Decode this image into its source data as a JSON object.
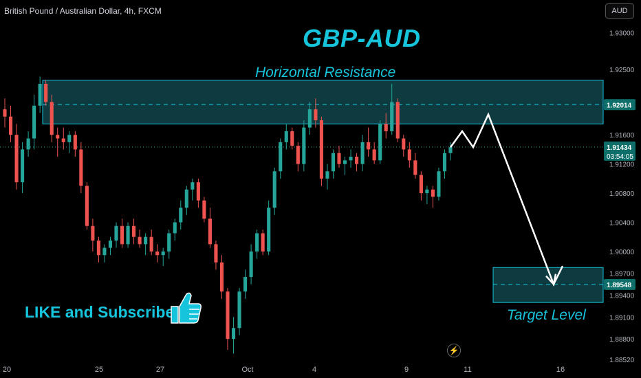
{
  "header": {
    "symbol": "British Pound / Australian Dollar, 4h, FXCM",
    "currency_button": "AUD"
  },
  "annotations": {
    "title": "GBP-AUD",
    "resistance_label": "Horizontal Resistance",
    "target_label": "Target Level",
    "like_text": "LIKE and Subscribe",
    "thumbs_icon": "thumbs-up-icon",
    "bolt_icon": "lightning-icon"
  },
  "colors": {
    "up": "#26a69a",
    "down": "#ef5350",
    "accent": "#16c4dc",
    "zone_fill": "#0e3b40",
    "price_tag": "#0e6f6a"
  },
  "price_tags": {
    "resistance": "1.92014",
    "current": "1.91434",
    "countdown": "03:54:05",
    "target": "1.89548"
  },
  "chart_data": {
    "type": "candlestick",
    "title": "GBP-AUD",
    "symbol": "British Pound / Australian Dollar, 4h, FXCM",
    "ylim": [
      1.885,
      1.9345
    ],
    "y_ticks": [
      "1.93000",
      "1.92500",
      "1.91600",
      "1.91200",
      "1.90800",
      "1.90400",
      "1.90000",
      "1.89700",
      "1.89400",
      "1.89100",
      "1.88800",
      "1.88520"
    ],
    "x_ticks": [
      "20",
      "25",
      "27",
      "Oct",
      "4",
      "9",
      "11",
      "16"
    ],
    "resistance_zone": [
      1.9175,
      1.9235
    ],
    "resistance_line": 1.92014,
    "target_zone": [
      1.893,
      1.8978
    ],
    "target_line": 1.89548,
    "current_price": 1.91434,
    "projection": [
      1.9143,
      1.9165,
      1.9143,
      1.9188,
      1.8955,
      1.898
    ],
    "candles": [
      [
        1.9195,
        1.921,
        1.917,
        1.9185
      ],
      [
        1.9185,
        1.92,
        1.915,
        1.916
      ],
      [
        1.916,
        1.9175,
        1.9085,
        1.9095
      ],
      [
        1.9095,
        1.915,
        1.908,
        1.914
      ],
      [
        1.914,
        1.9165,
        1.913,
        1.9155
      ],
      [
        1.9155,
        1.9215,
        1.914,
        1.92
      ],
      [
        1.92,
        1.924,
        1.919,
        1.923
      ],
      [
        1.923,
        1.9235,
        1.92,
        1.9205
      ],
      [
        1.9205,
        1.9215,
        1.915,
        1.916
      ],
      [
        1.916,
        1.917,
        1.913,
        1.9155
      ],
      [
        1.9155,
        1.917,
        1.914,
        1.915
      ],
      [
        1.915,
        1.9165,
        1.9135,
        1.916
      ],
      [
        1.916,
        1.9165,
        1.913,
        1.914
      ],
      [
        1.914,
        1.915,
        1.908,
        1.909
      ],
      [
        1.909,
        1.9095,
        1.903,
        1.9035
      ],
      [
        1.9035,
        1.9045,
        1.9,
        1.9015
      ],
      [
        1.9015,
        1.902,
        1.8985,
        1.8995
      ],
      [
        1.8995,
        1.901,
        1.8985,
        1.9005
      ],
      [
        1.9005,
        1.902,
        1.8995,
        1.9015
      ],
      [
        1.9015,
        1.904,
        1.9005,
        1.9035
      ],
      [
        1.9035,
        1.9045,
        1.9005,
        1.901
      ],
      [
        1.901,
        1.904,
        1.9005,
        1.9035
      ],
      [
        1.9035,
        1.9045,
        1.901,
        1.902
      ],
      [
        1.902,
        1.903,
        1.9005,
        1.901
      ],
      [
        1.901,
        1.9025,
        1.8995,
        1.902
      ],
      [
        1.902,
        1.903,
        1.8995,
        1.9
      ],
      [
        1.9,
        1.901,
        1.8985,
        1.8995
      ],
      [
        1.8995,
        1.9005,
        1.898,
        1.9
      ],
      [
        1.9,
        1.903,
        1.899,
        1.9025
      ],
      [
        1.9025,
        1.9045,
        1.9015,
        1.904
      ],
      [
        1.904,
        1.907,
        1.903,
        1.906
      ],
      [
        1.906,
        1.909,
        1.905,
        1.9085
      ],
      [
        1.9085,
        1.91,
        1.907,
        1.9095
      ],
      [
        1.9095,
        1.91,
        1.906,
        1.907
      ],
      [
        1.907,
        1.9075,
        1.904,
        1.9045
      ],
      [
        1.9045,
        1.906,
        1.9005,
        1.901
      ],
      [
        1.901,
        1.9015,
        1.8975,
        1.8985
      ],
      [
        1.8985,
        1.8995,
        1.8935,
        1.8945
      ],
      [
        1.8945,
        1.895,
        1.8865,
        1.888
      ],
      [
        1.888,
        1.891,
        1.886,
        1.8895
      ],
      [
        1.8895,
        1.895,
        1.8885,
        1.8945
      ],
      [
        1.8945,
        1.8975,
        1.8935,
        1.8965
      ],
      [
        1.8965,
        1.901,
        1.8955,
        1.9
      ],
      [
        1.9,
        1.903,
        1.899,
        1.9025
      ],
      [
        1.9025,
        1.903,
        1.8995,
        1.9
      ],
      [
        1.9,
        1.907,
        1.8995,
        1.906
      ],
      [
        1.906,
        1.9115,
        1.905,
        1.911
      ],
      [
        1.911,
        1.9155,
        1.91,
        1.915
      ],
      [
        1.915,
        1.9175,
        1.914,
        1.9165
      ],
      [
        1.9165,
        1.917,
        1.914,
        1.9145
      ],
      [
        1.9145,
        1.915,
        1.911,
        1.912
      ],
      [
        1.912,
        1.918,
        1.911,
        1.917
      ],
      [
        1.917,
        1.9205,
        1.916,
        1.9195
      ],
      [
        1.9195,
        1.921,
        1.917,
        1.918
      ],
      [
        1.918,
        1.9185,
        1.909,
        1.91
      ],
      [
        1.91,
        1.912,
        1.9085,
        1.911
      ],
      [
        1.911,
        1.914,
        1.91,
        1.9135
      ],
      [
        1.9135,
        1.9145,
        1.9115,
        1.912
      ],
      [
        1.912,
        1.913,
        1.9105,
        1.9125
      ],
      [
        1.9125,
        1.914,
        1.9115,
        1.913
      ],
      [
        1.913,
        1.9135,
        1.911,
        1.912
      ],
      [
        1.912,
        1.916,
        1.911,
        1.915
      ],
      [
        1.915,
        1.917,
        1.913,
        1.914
      ],
      [
        1.914,
        1.915,
        1.912,
        1.9125
      ],
      [
        1.9125,
        1.918,
        1.912,
        1.9175
      ],
      [
        1.9175,
        1.919,
        1.9155,
        1.9165
      ],
      [
        1.9165,
        1.923,
        1.916,
        1.9205
      ],
      [
        1.9205,
        1.921,
        1.915,
        1.9155
      ],
      [
        1.9155,
        1.916,
        1.913,
        1.914
      ],
      [
        1.914,
        1.915,
        1.9115,
        1.9125
      ],
      [
        1.9125,
        1.9135,
        1.91,
        1.9105
      ],
      [
        1.9105,
        1.911,
        1.907,
        1.908
      ],
      [
        1.908,
        1.909,
        1.9065,
        1.9085
      ],
      [
        1.9085,
        1.909,
        1.906,
        1.9075
      ],
      [
        1.9075,
        1.9115,
        1.907,
        1.911
      ],
      [
        1.911,
        1.914,
        1.91,
        1.9135
      ],
      [
        1.9135,
        1.915,
        1.9125,
        1.9143
      ]
    ]
  }
}
